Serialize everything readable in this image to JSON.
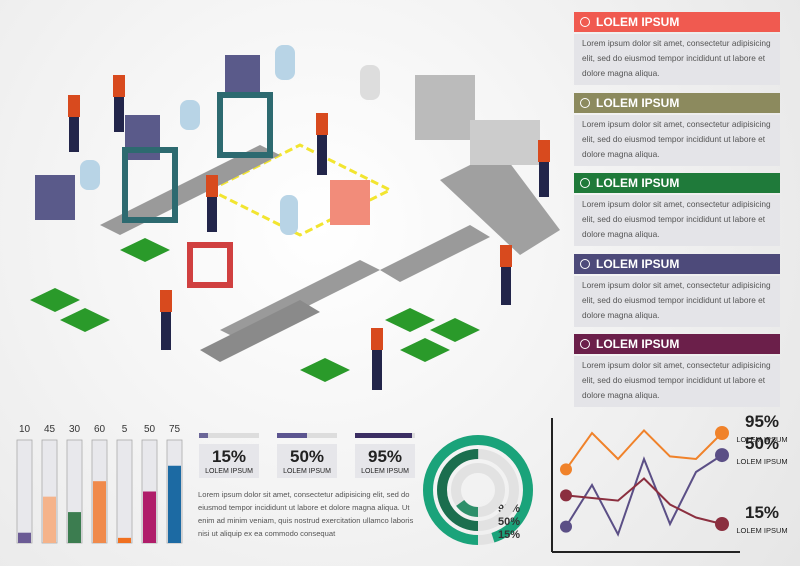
{
  "panels": [
    {
      "title": "LOLEM IPSUM",
      "color": "#f05a50",
      "text": "Lorem ipsum dolor sit amet, consectetur adipisicing elit, sed do eiusmod tempor incididunt ut labore et dolore magna aliqua."
    },
    {
      "title": "LOLEM IPSUM",
      "color": "#8c8a5e",
      "text": "Lorem ipsum dolor sit amet, consectetur adipisicing elit, sed do eiusmod tempor incididunt ut labore et dolore magna aliqua."
    },
    {
      "title": "LOLEM IPSUM",
      "color": "#1f7a3a",
      "text": "Lorem ipsum dolor sit amet, consectetur adipisicing elit, sed do eiusmod tempor incididunt ut labore et dolore magna aliqua."
    },
    {
      "title": "LOLEM IPSUM",
      "color": "#4d4a7a",
      "text": "Lorem ipsum dolor sit amet, consectetur adipisicing elit, sed do eiusmod tempor incididunt ut labore et dolore magna aliqua."
    },
    {
      "title": "LOLEM IPSUM",
      "color": "#6b1f4a",
      "text": "Lorem ipsum dolor sit amet, consectetur adipisicing elit, sed do eiusmod tempor incididunt ut labore et dolore magna aliqua."
    }
  ],
  "level_bars": {
    "ylim": [
      0,
      100
    ],
    "categories": [
      10,
      45,
      30,
      60,
      5,
      50,
      75
    ],
    "values": [
      10,
      45,
      30,
      60,
      5,
      50,
      75
    ],
    "colors": [
      "#6b5b95",
      "#f5b38a",
      "#3c7d50",
      "#f08a4b",
      "#f07020",
      "#b01d6a",
      "#1c6aa3"
    ]
  },
  "progress": {
    "xlim": [
      0,
      100
    ],
    "items": [
      {
        "value": 15,
        "value_label": "15%",
        "caption": "LOLEM IPSUM",
        "color": "#6b6698"
      },
      {
        "value": 50,
        "value_label": "50%",
        "caption": "LOLEM IPSUM",
        "color": "#5c5590"
      },
      {
        "value": 95,
        "value_label": "95%",
        "caption": "LOLEM IPSUM",
        "color": "#3b2e63"
      }
    ]
  },
  "paragraph": "Lorem ipsum dolor sit amet, consectetur adipisicing elit, sed do eiusmod tempor incididunt ut labore et dolore magna aliqua. Ut enim ad minim veniam, quis nostrud exercitation ullamco laboris nisi ut aliquip ex ea commodo consequat",
  "donut": {
    "rings": [
      {
        "value": 95,
        "value_label": "95%",
        "color": "#1aa37a"
      },
      {
        "value": 50,
        "value_label": "50%",
        "color": "#1b6e4e"
      },
      {
        "value": 15,
        "value_label": "15%",
        "color": "#2e8f6a"
      }
    ]
  },
  "line_chart": {
    "ylim": [
      0,
      100
    ],
    "series": [
      {
        "name": "LOLEM IPSUM",
        "value_label": "95%",
        "color": "#f0822a",
        "values": [
          62,
          90,
          70,
          92,
          72,
          70,
          90
        ]
      },
      {
        "name": "LOLEM IPSUM",
        "value_label": "50%",
        "color": "#5b4f86",
        "values": [
          18,
          50,
          12,
          70,
          20,
          60,
          73
        ]
      },
      {
        "name": "LOLEM IPSUM",
        "value_label": "15%",
        "color": "#8b2f3f",
        "values": [
          42,
          40,
          38,
          55,
          35,
          25,
          20
        ]
      }
    ]
  }
}
